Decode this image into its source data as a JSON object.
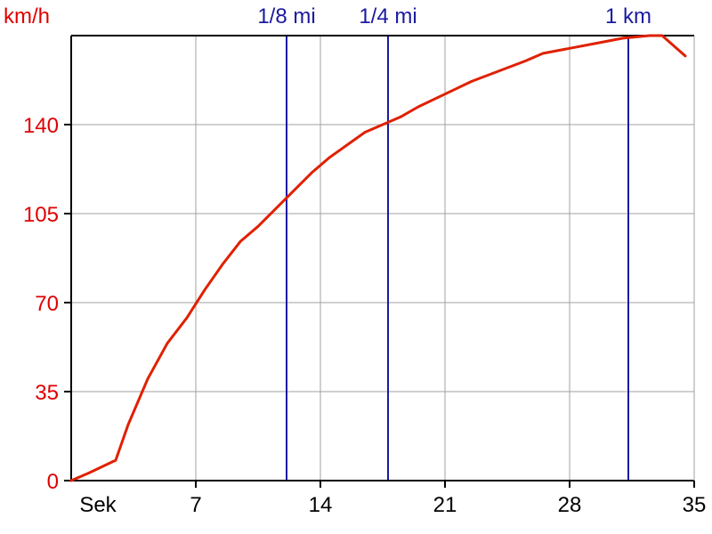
{
  "chart_data": {
    "type": "line",
    "x_unit_label": "Sek",
    "y_unit_label": "km/h",
    "xlim": [
      0,
      35
    ],
    "ylim": [
      0,
      175
    ],
    "x_ticks": [
      7,
      14,
      21,
      28,
      35
    ],
    "y_ticks": [
      0,
      35,
      70,
      105,
      140
    ],
    "grid": true,
    "series": [
      {
        "color": "#e02000",
        "x": [
          0,
          1,
          2.5,
          3.2,
          4.3,
          5.4,
          6.5,
          7.5,
          8.5,
          9.5,
          10.5,
          11.5,
          12.5,
          13.5,
          14.5,
          15.5,
          16.5,
          17.5,
          18.5,
          19.5,
          21,
          22.5,
          24,
          25.5,
          26.5,
          28,
          29.5,
          31,
          32.5,
          33.2,
          34.5
        ],
        "y": [
          0,
          3,
          8,
          22,
          40,
          54,
          64,
          75,
          85,
          94,
          100,
          107,
          114,
          121,
          127,
          132,
          137,
          140,
          143,
          147,
          152,
          157,
          161,
          165,
          168,
          170,
          172,
          174,
          175,
          175,
          167
        ]
      }
    ],
    "markers": [
      {
        "label": "1/8 mi",
        "x": 12.1,
        "color": "#1a1aa0"
      },
      {
        "label": "1/4 mi",
        "x": 17.8,
        "color": "#1a1aa0"
      },
      {
        "label": "1 km",
        "x": 31.3,
        "color": "#1a1aa0"
      }
    ],
    "colors": {
      "y_axis_text": "#e00000",
      "x_axis_text": "#000000",
      "grid": "#a0a0a0",
      "axis": "#000000"
    }
  }
}
